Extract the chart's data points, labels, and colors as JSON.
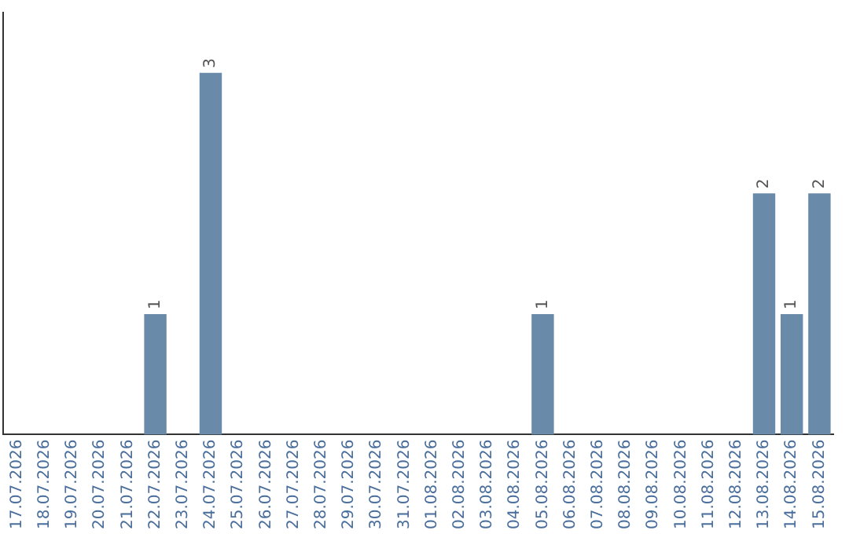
{
  "chart_data": {
    "type": "bar",
    "categories": [
      "17.07.2026",
      "18.07.2026",
      "19.07.2026",
      "20.07.2026",
      "21.07.2026",
      "22.07.2026",
      "23.07.2026",
      "24.07.2026",
      "25.07.2026",
      "26.07.2026",
      "27.07.2026",
      "28.07.2026",
      "29.07.2026",
      "30.07.2026",
      "31.07.2026",
      "01.08.2026",
      "02.08.2026",
      "03.08.2026",
      "04.08.2026",
      "05.08.2026",
      "06.08.2026",
      "07.08.2026",
      "08.08.2026",
      "09.08.2026",
      "10.08.2026",
      "11.08.2026",
      "12.08.2026",
      "13.08.2026",
      "14.08.2026",
      "15.08.2026"
    ],
    "values": [
      0,
      0,
      0,
      0,
      0,
      1,
      0,
      3,
      0,
      0,
      0,
      0,
      0,
      0,
      0,
      0,
      0,
      0,
      0,
      1,
      0,
      0,
      0,
      0,
      0,
      0,
      0,
      2,
      1,
      2
    ],
    "value_labels": [
      null,
      null,
      null,
      null,
      null,
      "1",
      null,
      "3",
      null,
      null,
      null,
      null,
      null,
      null,
      null,
      null,
      null,
      null,
      null,
      "1",
      null,
      null,
      null,
      null,
      null,
      null,
      null,
      "2",
      "1",
      "2"
    ],
    "color": "#6a8aaa",
    "grid": false,
    "legend": false,
    "tick_labels": "x"
  }
}
